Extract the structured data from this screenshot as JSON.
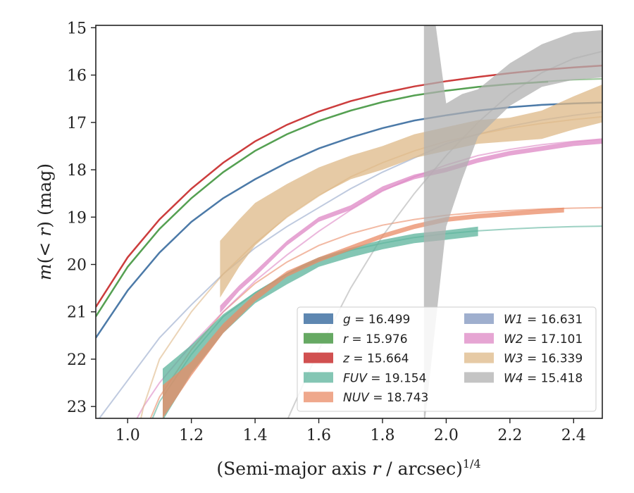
{
  "chart_data": {
    "type": "line",
    "xlabel_main": "(Semi-major axis ",
    "xlabel_var": "r",
    "xlabel_rest": " / arcsec)",
    "xlabel_sup": "1/4",
    "ylabel_m": "m",
    "ylabel_open": "(",
    "ylabel_lt": "< ",
    "ylabel_r": "r",
    "ylabel_close": ") (mag)",
    "xlim": [
      0.9,
      2.49
    ],
    "ylim": [
      23.25,
      14.95
    ],
    "y_inverted": true,
    "x_ticks": [
      1.0,
      1.2,
      1.4,
      1.6,
      1.8,
      2.0,
      2.2,
      2.4
    ],
    "x_tick_labels": [
      "1.0",
      "1.2",
      "1.4",
      "1.6",
      "1.8",
      "2.0",
      "2.2",
      "2.4"
    ],
    "y_ticks": [
      15,
      16,
      17,
      18,
      19,
      20,
      21,
      22,
      23
    ],
    "y_tick_labels": [
      "15",
      "16",
      "17",
      "18",
      "19",
      "20",
      "21",
      "22",
      "23"
    ],
    "grid": false,
    "legend_position": "lower-right",
    "series": [
      {
        "key": "g",
        "label_name": "g",
        "label_value": "16.499",
        "color": "#4c7aa8",
        "model": {
          "x": [
            0.9,
            1.0,
            1.1,
            1.2,
            1.3,
            1.4,
            1.5,
            1.6,
            1.7,
            1.8,
            1.9,
            2.0,
            2.1,
            2.2,
            2.3,
            2.4,
            2.49
          ],
          "y": [
            21.55,
            20.55,
            19.75,
            19.1,
            18.6,
            18.2,
            17.85,
            17.55,
            17.32,
            17.12,
            16.96,
            16.85,
            16.75,
            16.68,
            16.63,
            16.6,
            16.58
          ]
        },
        "data": {
          "x": [
            0.9,
            1.0,
            1.1,
            1.2,
            1.3,
            1.4,
            1.5,
            1.6,
            1.7,
            1.8,
            1.9,
            2.0,
            2.1,
            2.2,
            2.3,
            2.4,
            2.49
          ],
          "y": [
            21.55,
            20.55,
            19.75,
            19.1,
            18.6,
            18.2,
            17.85,
            17.55,
            17.32,
            17.12,
            16.96,
            16.85,
            16.75,
            16.68,
            16.63,
            16.6,
            16.58
          ]
        }
      },
      {
        "key": "r",
        "label_name": "r",
        "label_value": "15.976",
        "color": "#55a052",
        "model": {
          "x": [
            0.9,
            1.0,
            1.1,
            1.2,
            1.3,
            1.4,
            1.5,
            1.6,
            1.7,
            1.8,
            1.9,
            2.0,
            2.1,
            2.2,
            2.3,
            2.4,
            2.49
          ],
          "y": [
            21.1,
            20.05,
            19.25,
            18.6,
            18.05,
            17.6,
            17.25,
            16.97,
            16.75,
            16.57,
            16.43,
            16.33,
            16.25,
            16.19,
            16.14,
            16.1,
            16.08
          ]
        },
        "data": {
          "x": [
            0.9,
            1.0,
            1.1,
            1.2,
            1.3,
            1.4,
            1.5,
            1.6,
            1.7,
            1.8,
            1.9,
            2.0,
            2.1,
            2.2,
            2.32
          ],
          "y": [
            21.1,
            20.05,
            19.25,
            18.6,
            18.05,
            17.6,
            17.25,
            16.97,
            16.75,
            16.57,
            16.43,
            16.33,
            16.25,
            16.19,
            16.14
          ]
        }
      },
      {
        "key": "z",
        "label_name": "z",
        "label_value": "15.664",
        "color": "#cc3d3d",
        "model": {
          "x": [
            0.9,
            1.0,
            1.1,
            1.2,
            1.3,
            1.4,
            1.5,
            1.6,
            1.7,
            1.8,
            1.9,
            2.0,
            2.1,
            2.2,
            2.3,
            2.4,
            2.49
          ],
          "y": [
            20.9,
            19.85,
            19.05,
            18.4,
            17.85,
            17.4,
            17.05,
            16.77,
            16.55,
            16.38,
            16.24,
            16.13,
            16.04,
            15.96,
            15.89,
            15.84,
            15.8
          ]
        },
        "data": {
          "x": [
            0.9,
            1.0,
            1.1,
            1.2,
            1.3,
            1.4,
            1.5,
            1.6,
            1.7,
            1.8,
            1.9,
            2.0,
            2.1,
            2.2,
            2.3,
            2.4,
            2.49
          ],
          "y": [
            20.9,
            19.85,
            19.05,
            18.4,
            17.85,
            17.4,
            17.05,
            16.77,
            16.55,
            16.38,
            16.24,
            16.13,
            16.04,
            15.96,
            15.89,
            15.84,
            15.8
          ]
        }
      },
      {
        "key": "FUV",
        "label_name": "FUV",
        "label_value": "19.154",
        "color": "#5bb39b",
        "model": {
          "x": [
            1.0,
            1.1,
            1.2,
            1.3,
            1.4,
            1.5,
            1.6,
            1.7,
            1.8,
            1.9,
            2.0,
            2.1,
            2.2,
            2.3,
            2.4,
            2.49
          ],
          "y": [
            24.5,
            22.9,
            21.9,
            21.1,
            20.6,
            20.2,
            19.9,
            19.7,
            19.55,
            19.43,
            19.35,
            19.29,
            19.25,
            19.22,
            19.2,
            19.19
          ]
        },
        "data": {
          "x": [
            1.11,
            1.2,
            1.3,
            1.4,
            1.5,
            1.55,
            1.6,
            1.7,
            1.8,
            1.9,
            2.0,
            2.1
          ],
          "y": [
            22.75,
            22.0,
            21.25,
            20.7,
            20.3,
            20.12,
            19.95,
            19.75,
            19.58,
            19.45,
            19.38,
            19.3
          ],
          "err": [
            0.55,
            0.3,
            0.2,
            0.12,
            0.12,
            0.12,
            0.1,
            0.1,
            0.1,
            0.1,
            0.1,
            0.1
          ]
        }
      },
      {
        "key": "NUV",
        "label_name": "NUV",
        "label_value": "18.743",
        "color": "#ea8b65",
        "model": {
          "x": [
            1.0,
            1.05,
            1.1,
            1.2,
            1.3,
            1.4,
            1.5,
            1.6,
            1.7,
            1.8,
            1.9,
            2.0,
            2.1,
            2.2,
            2.3,
            2.4,
            2.49
          ],
          "y": [
            24.5,
            23.6,
            22.8,
            21.8,
            21.0,
            20.4,
            19.95,
            19.6,
            19.35,
            19.17,
            19.05,
            18.96,
            18.9,
            18.86,
            18.83,
            18.81,
            18.8
          ]
        },
        "data": {
          "x": [
            1.11,
            1.2,
            1.3,
            1.4,
            1.5,
            1.6,
            1.7,
            1.8,
            1.9,
            2.0,
            2.1,
            2.2,
            2.3,
            2.37
          ],
          "y": [
            22.9,
            22.2,
            21.35,
            20.7,
            20.2,
            19.9,
            19.65,
            19.4,
            19.2,
            19.05,
            18.98,
            18.93,
            18.88,
            18.85
          ],
          "err": [
            0.35,
            0.15,
            0.1,
            0.08,
            0.06,
            0.05,
            0.05,
            0.05,
            0.05,
            0.05,
            0.05,
            0.05,
            0.05,
            0.05
          ]
        }
      },
      {
        "key": "W1",
        "label_name": "W1",
        "label_value": "16.631",
        "color": "#95a6c9",
        "model": {
          "x": [
            0.9,
            1.0,
            1.1,
            1.2,
            1.3,
            1.4,
            1.5,
            1.6,
            1.7,
            1.8,
            1.9,
            2.0,
            2.1,
            2.2,
            2.3,
            2.4,
            2.49
          ],
          "y": [
            23.35,
            22.45,
            21.55,
            20.85,
            20.2,
            19.65,
            19.2,
            18.8,
            18.4,
            18.05,
            17.75,
            17.45,
            17.25,
            17.08,
            16.95,
            16.85,
            16.78
          ]
        },
        "data": {
          "x": [],
          "y": []
        }
      },
      {
        "key": "W2",
        "label_name": "W2",
        "label_value": "17.101",
        "color": "#de87c4",
        "model": {
          "x": [
            0.9,
            1.0,
            1.05,
            1.1,
            1.2,
            1.3,
            1.4,
            1.5,
            1.6,
            1.7,
            1.8,
            1.9,
            2.0,
            2.1,
            2.2,
            2.3,
            2.4,
            2.49
          ],
          "y": [
            24.8,
            23.6,
            23.0,
            22.5,
            21.7,
            21.0,
            20.35,
            19.8,
            19.3,
            18.85,
            18.45,
            18.15,
            17.9,
            17.7,
            17.57,
            17.47,
            17.4,
            17.35
          ]
        },
        "data": {
          "x": [
            1.29,
            1.35,
            1.4,
            1.5,
            1.6,
            1.7,
            1.8,
            1.9,
            2.0,
            2.1,
            2.2,
            2.3,
            2.4,
            2.49
          ],
          "y": [
            20.95,
            20.5,
            20.2,
            19.55,
            19.05,
            18.8,
            18.4,
            18.15,
            18.0,
            17.8,
            17.65,
            17.55,
            17.45,
            17.4
          ],
          "err": [
            0.08,
            0.06,
            0.06,
            0.05,
            0.05,
            0.05,
            0.05,
            0.05,
            0.05,
            0.05,
            0.05,
            0.05,
            0.05,
            0.05
          ]
        }
      },
      {
        "key": "W3",
        "label_name": "W3",
        "label_value": "16.339",
        "color": "#deb887",
        "model": {
          "x": [
            1.0,
            1.05,
            1.1,
            1.2,
            1.3,
            1.4,
            1.5,
            1.6,
            1.7,
            1.8,
            1.9,
            2.0,
            2.1,
            2.2,
            2.3,
            2.4,
            2.49
          ],
          "y": [
            24.5,
            23.0,
            22.0,
            21.0,
            20.2,
            19.55,
            19.0,
            18.55,
            18.15,
            17.85,
            17.6,
            17.4,
            17.25,
            17.12,
            17.02,
            16.94,
            16.88
          ]
        },
        "data": {
          "x": [
            1.29,
            1.35,
            1.4,
            1.5,
            1.6,
            1.7,
            1.8,
            1.9,
            2.0,
            2.1,
            2.2,
            2.3,
            2.4,
            2.49
          ],
          "y": [
            20.1,
            19.55,
            19.15,
            18.65,
            18.25,
            17.95,
            17.75,
            17.5,
            17.35,
            17.2,
            17.15,
            17.05,
            16.8,
            16.6
          ],
          "err": [
            0.6,
            0.5,
            0.45,
            0.35,
            0.3,
            0.25,
            0.25,
            0.25,
            0.25,
            0.25,
            0.25,
            0.3,
            0.35,
            0.4
          ]
        }
      },
      {
        "key": "W4",
        "label_name": "W4",
        "label_value": "15.418",
        "color": "#b0b0b0",
        "model": {
          "x": [
            1.5,
            1.6,
            1.7,
            1.8,
            1.9,
            2.0,
            2.1,
            2.2,
            2.3,
            2.4,
            2.49
          ],
          "y": [
            23.3,
            21.8,
            20.5,
            19.4,
            18.5,
            17.7,
            17.0,
            16.4,
            15.95,
            15.65,
            15.5
          ]
        },
        "data": {
          "x": [
            1.93,
            2.0,
            2.05,
            2.1,
            2.2,
            2.3,
            2.4,
            2.49
          ],
          "y": [
            18.3,
            17.9,
            17.3,
            16.8,
            16.2,
            15.8,
            15.6,
            15.55
          ],
          "err": [
            5.2,
            1.3,
            0.9,
            0.5,
            0.45,
            0.45,
            0.5,
            0.5
          ]
        }
      }
    ],
    "legend_columns": [
      [
        "g",
        "r",
        "z",
        "FUV",
        "NUV"
      ],
      [
        "W1",
        "W2",
        "W3",
        "W4"
      ]
    ]
  }
}
